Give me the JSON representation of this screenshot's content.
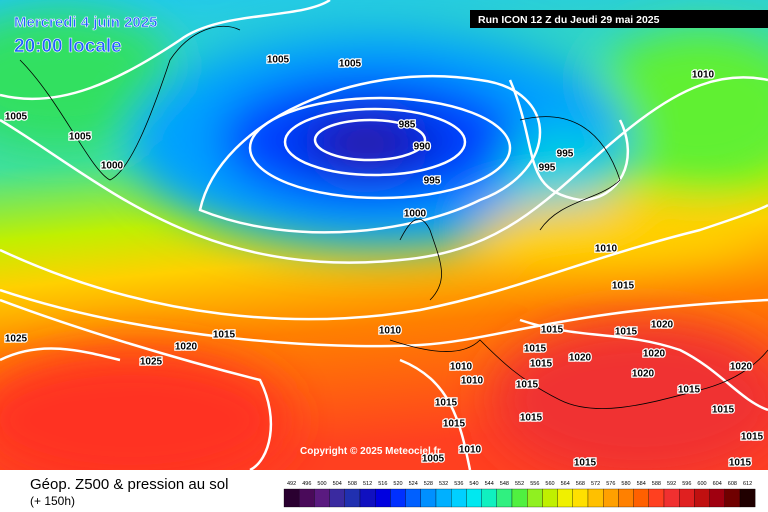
{
  "header": {
    "date": "Mercredi 4 juin 2025",
    "time": "20:00 locale",
    "run": "Run ICON 12 Z du Jeudi 29 mai 2025"
  },
  "copyright": "Copyright © 2025 Meteociel.fr",
  "footer": {
    "title": "Géop. Z500 & pression au sol",
    "subtitle": "(+ 150h)"
  },
  "isobar_labels": [
    "1005",
    "1005",
    "1005",
    "1005",
    "1000",
    "985",
    "990",
    "995",
    "995",
    "995",
    "1000",
    "1010",
    "1010",
    "1015",
    "1010",
    "1015",
    "1020",
    "1025",
    "1025",
    "1015",
    "1015",
    "1020",
    "1015",
    "1020",
    "1020",
    "1020",
    "1010",
    "1010",
    "1015",
    "1015",
    "1015",
    "1015",
    "1015",
    "1015",
    "1015",
    "1020",
    "1015",
    "1015",
    "1015",
    "1005",
    "1010"
  ],
  "legend": {
    "values": [
      "492",
      "496",
      "500",
      "504",
      "508",
      "512",
      "516",
      "520",
      "524",
      "528",
      "532",
      "536",
      "540",
      "544",
      "548",
      "552",
      "556",
      "560",
      "564",
      "568",
      "572",
      "576",
      "580",
      "584",
      "588",
      "592",
      "596",
      "600",
      "604",
      "608",
      "612"
    ],
    "colors": [
      "#2a0030",
      "#4a0a5a",
      "#5a1a80",
      "#3a2aa0",
      "#2030b0",
      "#1010c0",
      "#0000e0",
      "#0030ff",
      "#0060ff",
      "#0090ff",
      "#00b0ff",
      "#00d0ff",
      "#00e8f0",
      "#10f0c0",
      "#30f080",
      "#50f040",
      "#90f020",
      "#c0f000",
      "#f0f000",
      "#ffe000",
      "#ffc000",
      "#ffa000",
      "#ff8000",
      "#ff6000",
      "#ff4020",
      "#f03030",
      "#e02020",
      "#c01010",
      "#a00010",
      "#700000",
      "#200000"
    ]
  }
}
